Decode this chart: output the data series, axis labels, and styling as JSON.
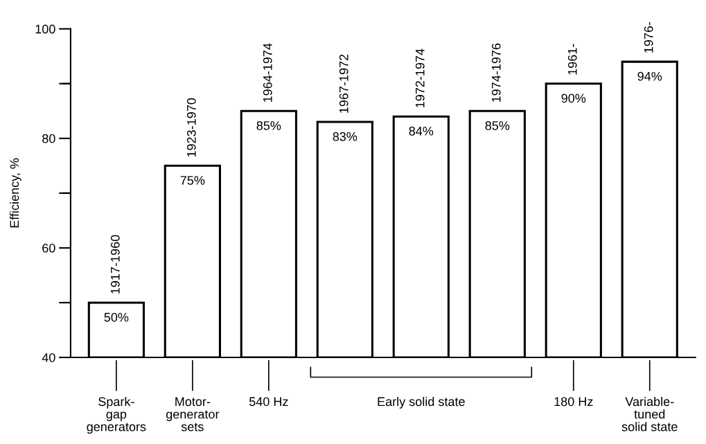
{
  "chart_data": {
    "type": "bar",
    "categories": [
      "Spark-\ngap\ngenerators",
      "Motor-\ngenerator\nsets",
      "540 Hz",
      null,
      "Early solid state",
      null,
      "180 Hz",
      "Variable-\ntuned\nsolid state"
    ],
    "values": [
      50,
      75,
      85,
      83,
      84,
      85,
      90,
      94
    ],
    "value_labels": [
      "50%",
      "75%",
      "85%",
      "83%",
      "84%",
      "85%",
      "90%",
      "94%"
    ],
    "color": "#ffffff",
    "ylabel": "Efficiency, %",
    "ylim": [
      40,
      100
    ],
    "yticks": [
      40,
      {
        "value": 50,
        "label": null
      },
      60,
      {
        "value": 70,
        "label": null
      },
      80,
      {
        "value": 90,
        "label": null
      },
      100
    ],
    "grid": false,
    "annotations": [
      {
        "text": "1917-1960",
        "y": 50
      },
      {
        "text": "1923-1970",
        "y": 75
      },
      {
        "text": "1964-1974",
        "y": 85
      },
      {
        "text": "1967-1972",
        "y": 83
      },
      {
        "text": "1972-1974",
        "y": 84
      },
      {
        "text": "1974-1976",
        "y": 85
      },
      {
        "text": "1961-",
        "y": 90
      },
      {
        "text": "1976-",
        "y": 94
      }
    ]
  }
}
